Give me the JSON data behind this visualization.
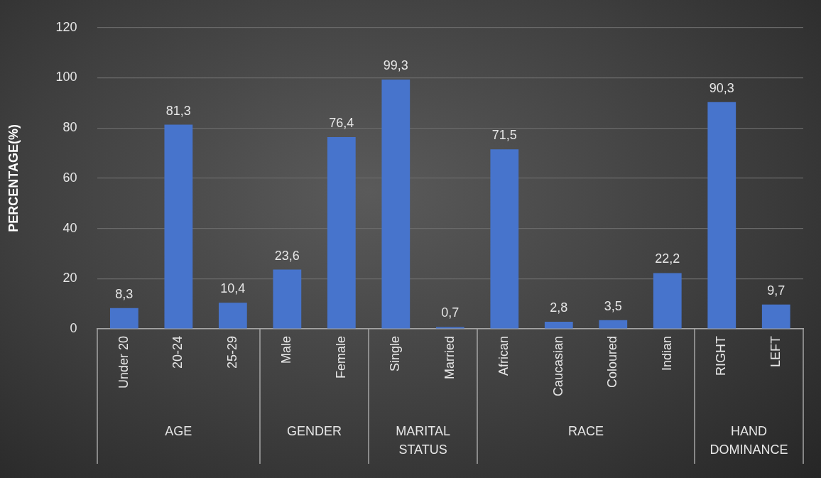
{
  "chart_data": {
    "type": "bar",
    "ylabel": "PERCENTAGE(%)",
    "categories": [
      "Under 20",
      "20-24",
      "25-29",
      "Male",
      "Female",
      "Single",
      "Married",
      "African",
      "Caucasian",
      "Coloured",
      "Indian",
      "RIGHT",
      "LEFT"
    ],
    "values": [
      8.3,
      81.3,
      10.4,
      23.6,
      76.4,
      99.3,
      0.7,
      71.5,
      2.8,
      3.5,
      22.2,
      90.3,
      9.7
    ],
    "value_labels": [
      "8,3",
      "81,3",
      "10,4",
      "23,6",
      "76,4",
      "99,3",
      "0,7",
      "71,5",
      "2,8",
      "3,5",
      "22,2",
      "90,3",
      "9,7"
    ],
    "color": "#4774cc",
    "ylim": [
      0,
      120
    ],
    "yticks": [
      0,
      20,
      40,
      60,
      80,
      100,
      120
    ],
    "grid": "y",
    "legend": false,
    "annotations": [
      "AGE",
      "GENDER",
      "MARITAL STATUS",
      "RACE",
      "HAND DOMINANCE"
    ]
  }
}
